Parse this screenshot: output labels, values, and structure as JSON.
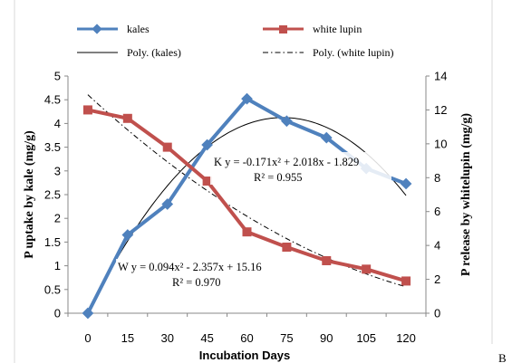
{
  "chart_data": {
    "type": "line",
    "xlabel": "Incubation Days",
    "ylabel_left": "P uptake by kale (mg/g)",
    "ylabel_right": "P release by whitelupin (mg/g)",
    "x": [
      0,
      15,
      30,
      45,
      60,
      75,
      90,
      105,
      120
    ],
    "ylim_left": [
      0,
      5
    ],
    "yticks_left": [
      "0",
      "0.5",
      "1",
      "1.5",
      "2",
      "2.5",
      "3",
      "3.5",
      "4",
      "4.5",
      "5"
    ],
    "ylim_right": [
      0,
      14
    ],
    "yticks_right": [
      "0",
      "2",
      "4",
      "6",
      "8",
      "10",
      "12",
      "14"
    ],
    "grid": false,
    "legend_position": "top",
    "series": [
      {
        "name": "kales",
        "axis": "left",
        "color": "#4F81BD",
        "marker": "diamond",
        "values": [
          0.0,
          1.65,
          2.3,
          3.55,
          4.52,
          4.05,
          3.7,
          3.05,
          2.73
        ]
      },
      {
        "name": "white lupin",
        "axis": "right",
        "color": "#C0504D",
        "marker": "square",
        "values": [
          12.0,
          11.5,
          9.8,
          7.8,
          4.8,
          3.9,
          3.1,
          2.6,
          1.9
        ]
      }
    ],
    "trendlines": [
      {
        "name": "Poly. (kales)",
        "axis": "left",
        "style": "solid",
        "color": "#000000",
        "coeffs": [
          -0.171,
          2.018,
          -1.829
        ]
      },
      {
        "name": "Poly. (white lupin)",
        "axis": "right",
        "style": "dashdot",
        "color": "#000000",
        "coeffs": [
          0.094,
          -2.357,
          15.16
        ]
      }
    ],
    "annotations": [
      {
        "id": "kale_eq",
        "text": "K y = -0.171x² + 2.018x - 1.829"
      },
      {
        "id": "kale_r2",
        "text": "R² = 0.955"
      },
      {
        "id": "lupin_eq",
        "text": "W y = 0.094x² - 2.357x + 15.16"
      },
      {
        "id": "lupin_r2",
        "text": "R² = 0.970"
      }
    ]
  },
  "page_edge_text": "B"
}
